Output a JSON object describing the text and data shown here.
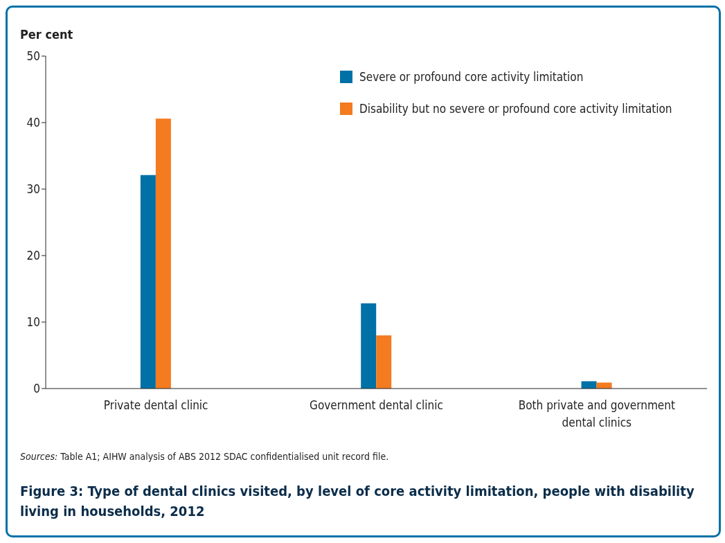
{
  "chart_data": {
    "type": "bar",
    "title": "Figure 3: Type of dental clinics visited, by level of core activity limitation, people with disability living in households, 2012",
    "ylabel": "Per cent",
    "categories": [
      "Private dental clinic",
      "Government dental clinic",
      "Both private and government dental clinics"
    ],
    "series": [
      {
        "name": "Severe or profound core activity limitation",
        "color": "#0071a6",
        "values": [
          32.1,
          12.8,
          1.1
        ]
      },
      {
        "name": "Disability but no severe or profound core activity limitation",
        "color": "#f47b20",
        "values": [
          40.6,
          8.0,
          0.9
        ]
      }
    ],
    "ylim": [
      0,
      50
    ],
    "yticks": [
      0,
      10,
      20,
      30,
      40,
      50
    ],
    "grid": false,
    "legend": "top right",
    "annotations": [
      "Sources: Table A1; AIHW analysis of ABS 2012 SDAC confidentialised unit record file."
    ]
  }
}
